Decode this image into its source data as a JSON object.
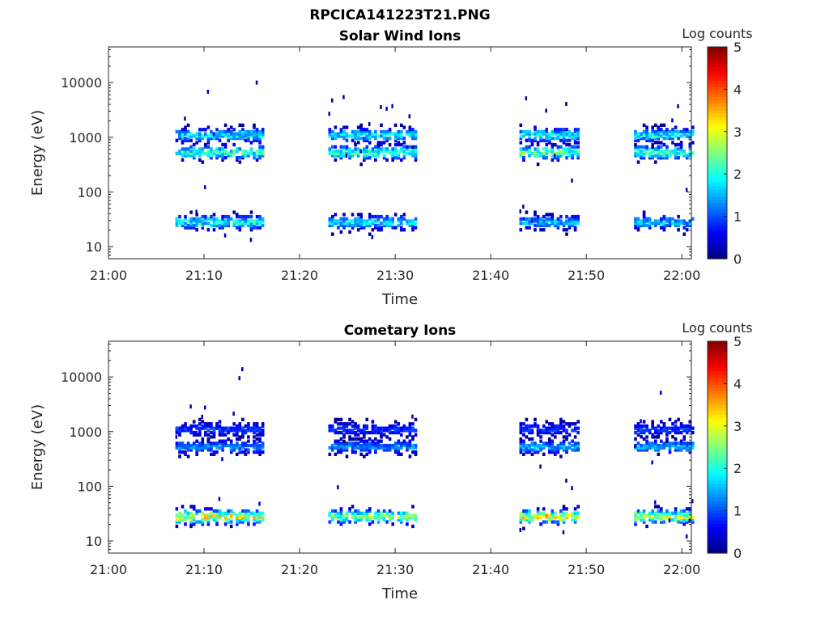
{
  "figure_title": "RPCICA141223T21.PNG",
  "chart_data": [
    {
      "type": "heatmap",
      "title": "Solar Wind Ions",
      "xlabel": "Time",
      "ylabel": "Energy (eV)",
      "xlim": [
        "21:00",
        "22:01"
      ],
      "xticks": [
        "21:00",
        "21:10",
        "21:20",
        "21:30",
        "21:40",
        "21:50",
        "22:00"
      ],
      "yscale": "log",
      "ylim": [
        6,
        45000
      ],
      "yticks": [
        "10",
        "100",
        "1000",
        "10000"
      ],
      "colorbar": {
        "label": "Log counts",
        "min": 0,
        "max": 5,
        "ticks": [
          "0",
          "1",
          "2",
          "3",
          "4",
          "5"
        ]
      },
      "bursts": [
        {
          "start": "21:07",
          "end": "21:16",
          "peaks": [
            {
              "energy": 530,
              "log_counts": 2.6
            },
            {
              "energy": 1100,
              "log_counts": 2.2
            },
            {
              "energy": 28,
              "log_counts": 2.4
            }
          ]
        },
        {
          "start": "21:23",
          "end": "21:32",
          "peaks": [
            {
              "energy": 530,
              "log_counts": 2.7
            },
            {
              "energy": 1100,
              "log_counts": 2.2
            },
            {
              "energy": 28,
              "log_counts": 2.1
            }
          ]
        },
        {
          "start": "21:43",
          "end": "21:49",
          "peaks": [
            {
              "energy": 530,
              "log_counts": 2.9
            },
            {
              "energy": 1100,
              "log_counts": 2.3
            },
            {
              "energy": 28,
              "log_counts": 1.9
            }
          ]
        },
        {
          "start": "21:55",
          "end": "22:01",
          "peaks": [
            {
              "energy": 530,
              "log_counts": 2.9
            },
            {
              "energy": 1100,
              "log_counts": 2.3
            },
            {
              "energy": 28,
              "log_counts": 1.9
            }
          ]
        }
      ]
    },
    {
      "type": "heatmap",
      "title": "Cometary Ions",
      "xlabel": "Time",
      "ylabel": "Energy (eV)",
      "xlim": [
        "21:00",
        "22:01"
      ],
      "xticks": [
        "21:00",
        "21:10",
        "21:20",
        "21:30",
        "21:40",
        "21:50",
        "22:00"
      ],
      "yscale": "log",
      "ylim": [
        6,
        45000
      ],
      "yticks": [
        "10",
        "100",
        "1000",
        "10000"
      ],
      "colorbar": {
        "label": "Log counts",
        "min": 0,
        "max": 5,
        "ticks": [
          "0",
          "1",
          "2",
          "3",
          "4",
          "5"
        ]
      },
      "bursts": [
        {
          "start": "21:07",
          "end": "21:16",
          "peaks": [
            {
              "energy": 28,
              "log_counts": 3.8
            },
            {
              "energy": 530,
              "log_counts": 1.6
            },
            {
              "energy": 1100,
              "log_counts": 1.1
            }
          ]
        },
        {
          "start": "21:23",
          "end": "21:32",
          "peaks": [
            {
              "energy": 28,
              "log_counts": 3.2
            },
            {
              "energy": 530,
              "log_counts": 1.6
            },
            {
              "energy": 1100,
              "log_counts": 1.1
            }
          ]
        },
        {
          "start": "21:43",
          "end": "21:49",
          "peaks": [
            {
              "energy": 28,
              "log_counts": 3.8
            },
            {
              "energy": 530,
              "log_counts": 1.8
            },
            {
              "energy": 1100,
              "log_counts": 1.1
            }
          ]
        },
        {
          "start": "21:55",
          "end": "22:01",
          "peaks": [
            {
              "energy": 28,
              "log_counts": 3.5
            },
            {
              "energy": 530,
              "log_counts": 1.8
            },
            {
              "energy": 1100,
              "log_counts": 1.1
            }
          ]
        }
      ]
    }
  ]
}
